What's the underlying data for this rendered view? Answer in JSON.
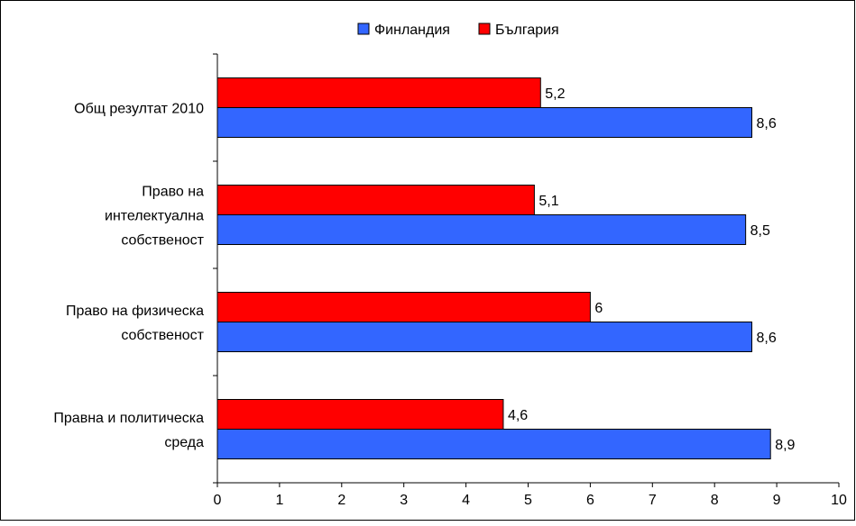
{
  "chart_data": {
    "type": "bar",
    "orientation": "horizontal",
    "categories": [
      [
        "Общ резултат 2010"
      ],
      [
        "Право на",
        "интелектуална",
        "собственост"
      ],
      [
        "Право на физическа",
        "собственост"
      ],
      [
        "Правна и политическа",
        "среда"
      ]
    ],
    "series": [
      {
        "name": "Финландия",
        "color": "#3366FF",
        "values": [
          8.6,
          8.5,
          8.6,
          8.9
        ],
        "labels": [
          "8,6",
          "8,5",
          "8,6",
          "8,9"
        ]
      },
      {
        "name": "България",
        "color": "#FF0000",
        "values": [
          5.2,
          5.1,
          6,
          4.6
        ],
        "labels": [
          "5,2",
          "5,1",
          "6",
          "4,6"
        ]
      }
    ],
    "xlim": [
      0,
      10
    ],
    "xticks": [
      "0",
      "1",
      "2",
      "3",
      "4",
      "5",
      "6",
      "7",
      "8",
      "9",
      "10"
    ],
    "title": "",
    "xlabel": "",
    "ylabel": "",
    "legend_position": "top-center",
    "grid": false
  }
}
